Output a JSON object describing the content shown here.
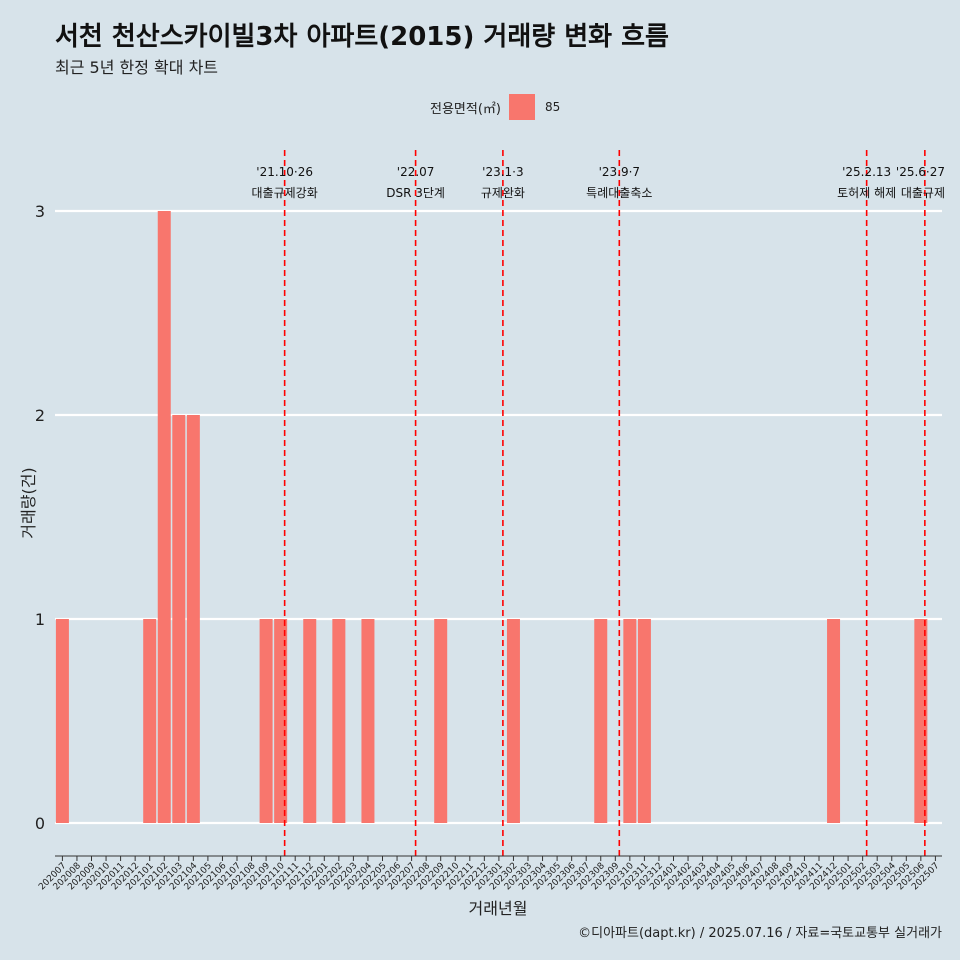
{
  "page": {
    "title": "서천 천산스카이빌3차 아파트(2015) 거래량 변화 흐름",
    "subtitle": "최근 5년 한정 확대 차트",
    "caption": "©디아파트(dapt.kr) / 2025.07.16 / 자료=국토교통부 실거래가"
  },
  "legend": {
    "title": "전용면적(㎡)",
    "items": [
      {
        "label": "85",
        "color": "#f8766d"
      }
    ]
  },
  "chart_data": {
    "type": "bar",
    "xlabel": "거래년월",
    "ylabel": "거래량(건)",
    "ylim": [
      0,
      3
    ],
    "yticks": [
      0,
      1,
      2,
      3
    ],
    "grid": "horizontal",
    "legend_position": "top",
    "bar_color": "#f8766d",
    "categories": [
      "202007",
      "202008",
      "202009",
      "202010",
      "202011",
      "202012",
      "202101",
      "202102",
      "202103",
      "202104",
      "202105",
      "202106",
      "202107",
      "202108",
      "202109",
      "202110",
      "202111",
      "202112",
      "202201",
      "202202",
      "202203",
      "202204",
      "202205",
      "202206",
      "202207",
      "202208",
      "202209",
      "202210",
      "202211",
      "202212",
      "202301",
      "202302",
      "202303",
      "202304",
      "202305",
      "202306",
      "202307",
      "202308",
      "202309",
      "202310",
      "202311",
      "202312",
      "202401",
      "202402",
      "202403",
      "202404",
      "202405",
      "202406",
      "202407",
      "202408",
      "202409",
      "202410",
      "202411",
      "202412",
      "202501",
      "202502",
      "202503",
      "202504",
      "202505",
      "202506",
      "202507"
    ],
    "series": [
      {
        "name": "85",
        "values": [
          1,
          0,
          0,
          0,
          0,
          0,
          1,
          3,
          2,
          2,
          0,
          0,
          0,
          0,
          1,
          1,
          0,
          1,
          0,
          1,
          0,
          1,
          0,
          0,
          0,
          0,
          1,
          0,
          0,
          0,
          0,
          1,
          0,
          0,
          0,
          0,
          0,
          1,
          0,
          1,
          1,
          0,
          0,
          0,
          0,
          0,
          0,
          0,
          0,
          0,
          0,
          0,
          0,
          1,
          0,
          0,
          0,
          0,
          0,
          1,
          0
        ]
      }
    ],
    "annotations": [
      {
        "date_label": "'21.10·26",
        "text": "대출규제강화",
        "x": "202110"
      },
      {
        "date_label": "'22.07",
        "text": "DSR 3단계",
        "x": "202207"
      },
      {
        "date_label": "'23.1·3",
        "text": "규제완화",
        "x": "202301"
      },
      {
        "date_label": "'23.9·7",
        "text": "특례대출축소",
        "x": "202309"
      },
      {
        "date_label": "'25.2.13",
        "text": "토허제 해제",
        "x": "202502"
      },
      {
        "date_label": "'25.6·27",
        "text": "대출규제",
        "x": "202506"
      }
    ]
  }
}
